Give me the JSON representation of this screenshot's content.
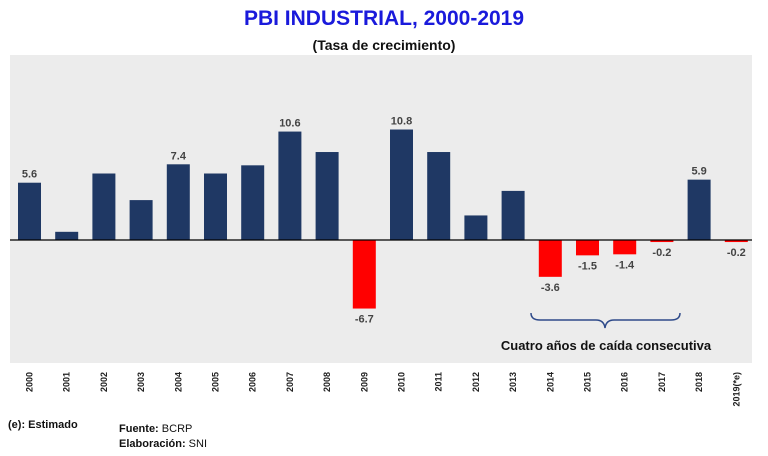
{
  "chart_data": {
    "type": "bar",
    "title": "PBI INDUSTRIAL, 2000-2019",
    "subtitle": "(Tasa de crecimiento)",
    "categories": [
      "2000",
      "2001",
      "2002",
      "2003",
      "2004",
      "2005",
      "2006",
      "2007",
      "2008",
      "2009",
      "2010",
      "2011",
      "2012",
      "2013",
      "2014",
      "2015",
      "2016",
      "2017",
      "2018",
      "2019(*e)"
    ],
    "values": [
      5.6,
      0.8,
      6.5,
      3.9,
      7.4,
      6.5,
      7.3,
      10.6,
      8.6,
      -6.7,
      10.8,
      8.6,
      2.4,
      4.8,
      -3.6,
      -1.5,
      -1.4,
      -0.2,
      5.9,
      -0.2
    ],
    "data_labels": {
      "0": "5.6",
      "4": "7.4",
      "7": "10.6",
      "9": "-6.7",
      "10": "10.8",
      "14": "-3.6",
      "15": "-1.5",
      "16": "-1.4",
      "17": "-0.2",
      "18": "5.9",
      "19": "-0.2"
    },
    "colors": {
      "positive": "#1f3864",
      "negative": "#ff0000",
      "title": "#1a1adb",
      "plot_background": "#ececec"
    },
    "ylim": [
      -12,
      13
    ],
    "grid": false,
    "annotation": "Cuatro años de caída consecutiva"
  },
  "notes": {
    "estimated": "(e): Estimado",
    "source_label": "Fuente:",
    "source_value": " BCRP",
    "elab_label": "Elaboración:",
    "elab_value": " SNI"
  }
}
